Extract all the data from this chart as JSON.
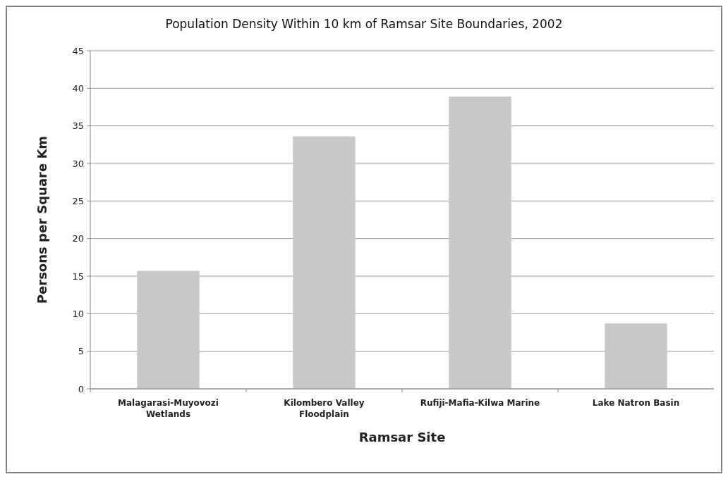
{
  "chart_data": {
    "type": "bar",
    "title": "Population  Density Within 10 km of Ramsar Site Boundaries, 2002",
    "xlabel": "Ramsar Site",
    "ylabel": "Persons per Square Km",
    "categories": [
      "Malagarasi-Muyovozi Wetlands",
      "Kilombero Valley Floodplain",
      "Rufiji-Mafia-Kilwa Marine",
      "Lake Natron Basin"
    ],
    "values": [
      15.7,
      33.6,
      38.9,
      8.7
    ],
    "color": "#c8c8c8",
    "ylim": [
      0,
      45
    ],
    "yticks": [
      0,
      5,
      10,
      15,
      20,
      25,
      30,
      35,
      40,
      45
    ],
    "grid": true
  }
}
